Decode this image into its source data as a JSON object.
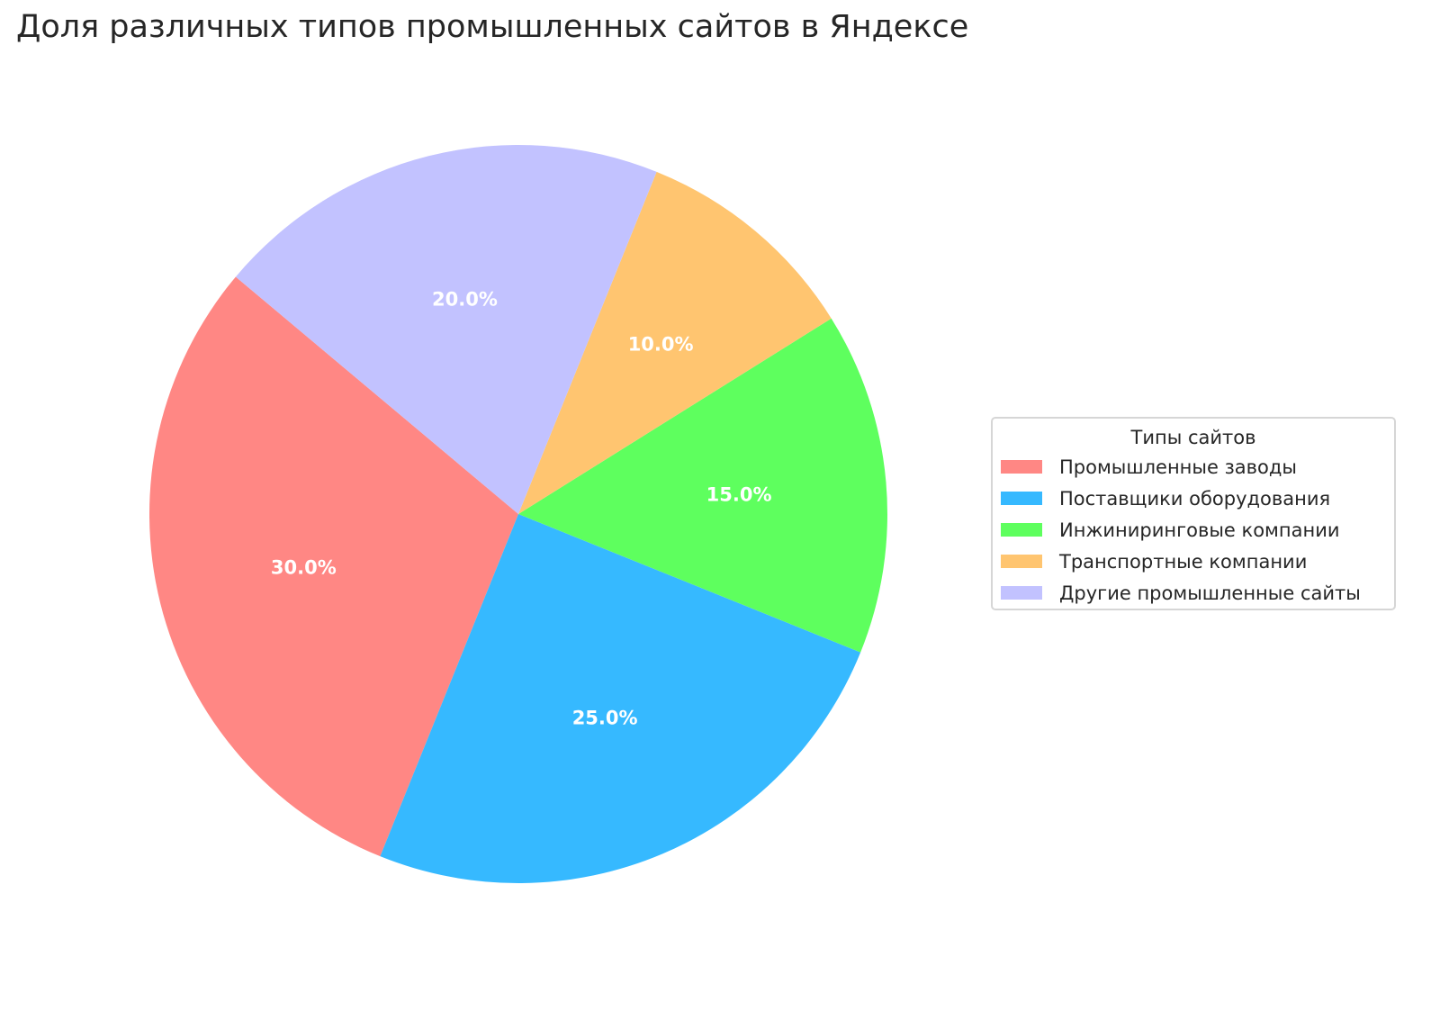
{
  "chart_data": {
    "type": "pie",
    "title": "Доля различных типов промышленных сайтов в Яндексе",
    "categories": [
      "Промышленные заводы",
      "Поставщики оборудования",
      "Инжиниринговые компании",
      "Транспортные компании",
      "Другие промышленные сайты"
    ],
    "values": [
      30,
      25,
      15,
      10,
      20
    ],
    "data_labels": [
      "30.0%",
      "25.0%",
      "15.0%",
      "10.0%",
      "20.0%"
    ],
    "colors": [
      "#ff8784",
      "#36b9ff",
      "#5eff5e",
      "#ffc570",
      "#c2c2ff"
    ],
    "start_angle": 140,
    "direction": "counterclockwise",
    "legend": {
      "title": "Типы сайтов",
      "placement": "right"
    }
  }
}
